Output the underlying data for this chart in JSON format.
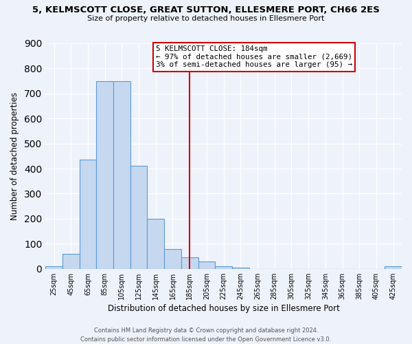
{
  "title": "5, KELMSCOTT CLOSE, GREAT SUTTON, ELLESMERE PORT, CH66 2ES",
  "subtitle": "Size of property relative to detached houses in Ellesmere Port",
  "xlabel": "Distribution of detached houses by size in Ellesmere Port",
  "ylabel": "Number of detached properties",
  "bin_labels": [
    "25sqm",
    "45sqm",
    "65sqm",
    "85sqm",
    "105sqm",
    "125sqm",
    "145sqm",
    "165sqm",
    "185sqm",
    "205sqm",
    "225sqm",
    "245sqm",
    "265sqm",
    "285sqm",
    "305sqm",
    "325sqm",
    "345sqm",
    "365sqm",
    "385sqm",
    "405sqm",
    "425sqm"
  ],
  "bar_values": [
    10,
    60,
    435,
    750,
    750,
    410,
    200,
    80,
    45,
    30,
    10,
    5,
    0,
    0,
    0,
    0,
    0,
    0,
    0,
    0,
    10
  ],
  "bar_color": "#c5d8f0",
  "bar_edge_color": "#5b9bd5",
  "vline_x": 8,
  "vline_color": "#cc0000",
  "ylim": [
    0,
    900
  ],
  "yticks": [
    0,
    100,
    200,
    300,
    400,
    500,
    600,
    700,
    800,
    900
  ],
  "annotation_title": "5 KELMSCOTT CLOSE: 184sqm",
  "annotation_line1": "← 97% of detached houses are smaller (2,669)",
  "annotation_line2": "3% of semi-detached houses are larger (95) →",
  "annotation_box_color": "#cc0000",
  "background_color": "#eef2fb",
  "grid_color": "#ffffff",
  "footer1": "Contains HM Land Registry data © Crown copyright and database right 2024.",
  "footer2": "Contains public sector information licensed under the Open Government Licence v3.0."
}
